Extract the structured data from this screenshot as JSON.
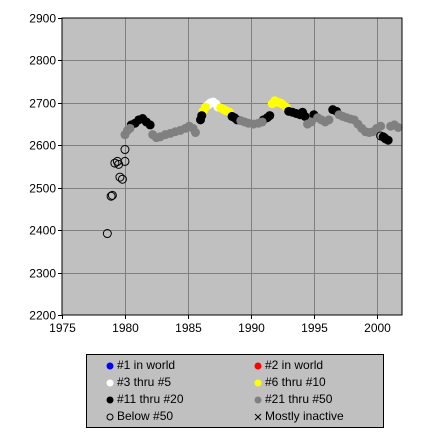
{
  "chart_data": {
    "type": "scatter",
    "xlim": [
      1975,
      2002
    ],
    "ylim": [
      2200,
      2900
    ],
    "x_ticks": [
      1975,
      1980,
      1985,
      1990,
      1995,
      2000
    ],
    "y_ticks": [
      2200,
      2300,
      2400,
      2500,
      2600,
      2700,
      2800,
      2900
    ],
    "grid": true,
    "legend_position": "bottom",
    "background_color": "#c0c0c0",
    "series": [
      {
        "name": "#1 in world",
        "color": "#0000ff",
        "marker": "filled",
        "points": []
      },
      {
        "name": "#2 in world",
        "color": "#ff0000",
        "marker": "filled",
        "points": []
      },
      {
        "name": "#3 thru #5",
        "color": "#ffffff",
        "marker": "filled",
        "points": [
          [
            1986.6,
            2695
          ],
          [
            1986.8,
            2700
          ],
          [
            1987.0,
            2702
          ],
          [
            1987.2,
            2698
          ],
          [
            1987.4,
            2690
          ]
        ]
      },
      {
        "name": "#6 thru #10",
        "color": "#ffff00",
        "marker": "filled",
        "points": [
          [
            1986.2,
            2680
          ],
          [
            1986.4,
            2690
          ],
          [
            1987.6,
            2688
          ],
          [
            1987.8,
            2685
          ],
          [
            1988.0,
            2682
          ],
          [
            1988.3,
            2678
          ],
          [
            1991.7,
            2698
          ],
          [
            1991.9,
            2705
          ],
          [
            1992.1,
            2702
          ],
          [
            1992.3,
            2700
          ],
          [
            1992.5,
            2697
          ],
          [
            1992.8,
            2690
          ]
        ]
      },
      {
        "name": "#11 thru #20",
        "color": "#000000",
        "marker": "filled",
        "points": [
          [
            1980.5,
            2648
          ],
          [
            1980.8,
            2652
          ],
          [
            1981.1,
            2660
          ],
          [
            1981.4,
            2663
          ],
          [
            1981.7,
            2655
          ],
          [
            1982.0,
            2648
          ],
          [
            1986.0,
            2660
          ],
          [
            1986.1,
            2670
          ],
          [
            1988.5,
            2668
          ],
          [
            1988.7,
            2665
          ],
          [
            1988.9,
            2660
          ],
          [
            1991.0,
            2660
          ],
          [
            1991.3,
            2665
          ],
          [
            1991.5,
            2670
          ],
          [
            1993.0,
            2680
          ],
          [
            1993.3,
            2678
          ],
          [
            1993.6,
            2675
          ],
          [
            1993.9,
            2672
          ],
          [
            1994.1,
            2678
          ],
          [
            1994.3,
            2668
          ],
          [
            1995.0,
            2672
          ],
          [
            1996.5,
            2684
          ],
          [
            1996.8,
            2680
          ],
          [
            2000.5,
            2620
          ],
          [
            2000.7,
            2615
          ],
          [
            2000.9,
            2612
          ]
        ]
      },
      {
        "name": "#21 thru #50",
        "color": "#808080",
        "marker": "filled",
        "points": [
          [
            1980.0,
            2625
          ],
          [
            1980.2,
            2635
          ],
          [
            1980.4,
            2640
          ],
          [
            1982.2,
            2625
          ],
          [
            1982.5,
            2618
          ],
          [
            1982.8,
            2620
          ],
          [
            1983.2,
            2625
          ],
          [
            1983.6,
            2628
          ],
          [
            1984.0,
            2632
          ],
          [
            1984.4,
            2635
          ],
          [
            1984.8,
            2640
          ],
          [
            1985.1,
            2645
          ],
          [
            1985.4,
            2640
          ],
          [
            1985.6,
            2630
          ],
          [
            1989.2,
            2658
          ],
          [
            1989.5,
            2655
          ],
          [
            1989.8,
            2652
          ],
          [
            1990.2,
            2650
          ],
          [
            1990.6,
            2652
          ],
          [
            1990.9,
            2655
          ],
          [
            1994.5,
            2650
          ],
          [
            1994.8,
            2655
          ],
          [
            1995.3,
            2665
          ],
          [
            1995.6,
            2660
          ],
          [
            1995.9,
            2655
          ],
          [
            1996.2,
            2660
          ],
          [
            1997.0,
            2672
          ],
          [
            1997.3,
            2668
          ],
          [
            1997.6,
            2665
          ],
          [
            1997.9,
            2662
          ],
          [
            1998.2,
            2660
          ],
          [
            1998.5,
            2650
          ],
          [
            1998.8,
            2640
          ],
          [
            1999.1,
            2632
          ],
          [
            1999.4,
            2630
          ],
          [
            1999.7,
            2632
          ],
          [
            2000.0,
            2640
          ],
          [
            2000.3,
            2645
          ],
          [
            2001.1,
            2645
          ],
          [
            2001.4,
            2648
          ],
          [
            2001.7,
            2642
          ]
        ]
      },
      {
        "name": "Below #50",
        "color": "#000000",
        "marker": "open",
        "points": [
          [
            1978.6,
            2392
          ],
          [
            1978.9,
            2480
          ],
          [
            1979.0,
            2482
          ],
          [
            1979.2,
            2558
          ],
          [
            1979.4,
            2562
          ],
          [
            1979.5,
            2555
          ],
          [
            1979.6,
            2525
          ],
          [
            1979.8,
            2520
          ],
          [
            1980.0,
            2562
          ],
          [
            1980.0,
            2590
          ],
          [
            2000.3,
            2622
          ],
          [
            2000.6,
            2618
          ]
        ]
      },
      {
        "name": "Mostly inactive",
        "color": "#000000",
        "marker": "x",
        "points": []
      }
    ]
  }
}
